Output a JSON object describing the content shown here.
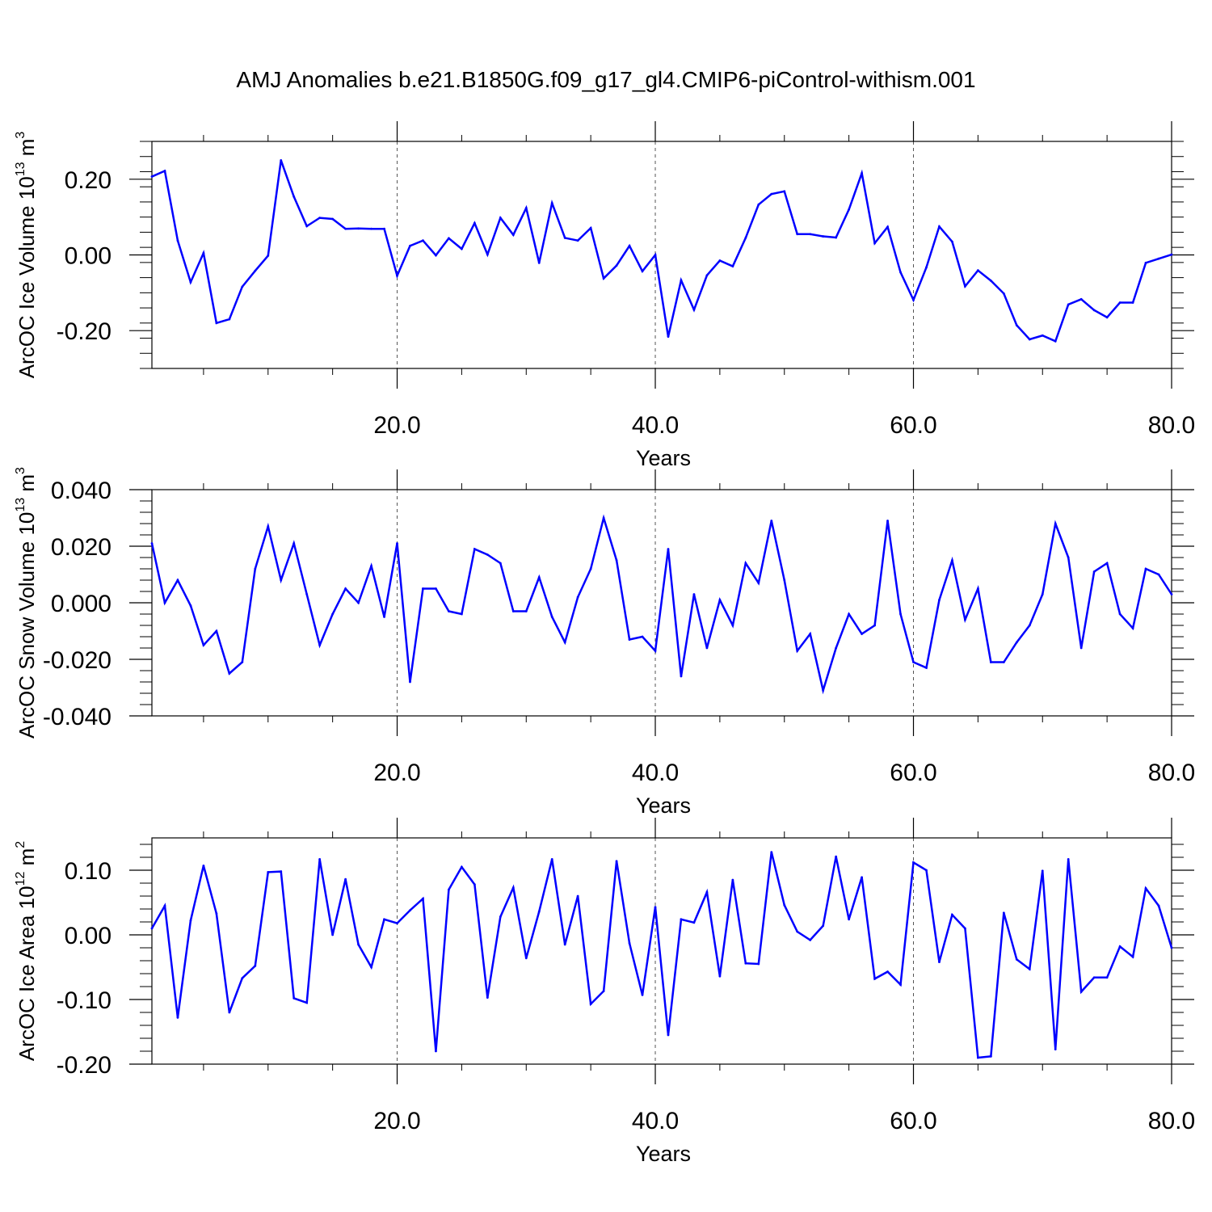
{
  "title": "AMJ Anomalies b.e21.B1850G.f09_g17_gl4.CMIP6-piControl-withism.001",
  "colors": {
    "line": "#0000ff",
    "axes": "#000000"
  },
  "chart_data": [
    {
      "type": "line",
      "ylabel_text": "ArcOC Ice Volume 10",
      "ylabel_exp": "13",
      "ylabel_unit": " m",
      "ylabel_unit_exp": "3",
      "xlabel": "Years",
      "xlim": [
        1,
        80
      ],
      "ylim": [
        -0.3,
        0.3
      ],
      "yticks": [
        -0.2,
        0.0,
        0.2
      ],
      "ytick_labels": [
        "-0.20",
        "0.00",
        "0.20"
      ],
      "xticks": [
        20,
        40,
        60,
        80
      ],
      "xtick_labels": [
        "20.0",
        "40.0",
        "60.0",
        "80.0"
      ],
      "vlines": [
        20,
        40,
        60
      ],
      "series": [
        {
          "x": [
            1,
            2,
            3,
            4,
            5,
            6,
            7,
            8,
            9,
            10,
            11,
            12,
            13,
            14,
            15,
            16,
            17,
            18,
            19,
            20,
            21,
            22,
            23,
            24,
            25,
            26,
            27,
            28,
            29,
            30,
            31,
            32,
            33,
            34,
            35,
            36,
            37,
            38,
            39,
            40,
            41,
            42,
            43,
            44,
            45,
            46,
            47,
            48,
            49,
            50,
            51,
            52,
            53,
            54,
            55,
            56,
            57,
            58,
            59,
            60,
            61,
            62,
            63,
            64,
            65,
            66,
            67,
            68,
            69,
            70,
            71,
            72,
            73,
            74,
            75,
            76,
            77,
            78,
            79,
            80
          ],
          "values": [
            0.207,
            0.222,
            0.038,
            -0.072,
            0.005,
            -0.18,
            -0.17,
            -0.084,
            -0.042,
            -0.002,
            0.25,
            0.154,
            0.076,
            0.098,
            0.095,
            0.069,
            0.07,
            0.069,
            0.069,
            -0.055,
            0.024,
            0.038,
            -0.001,
            0.044,
            0.016,
            0.084,
            0.001,
            0.098,
            0.053,
            0.124,
            -0.021,
            0.137,
            0.045,
            0.038,
            0.071,
            -0.062,
            -0.028,
            0.024,
            -0.043,
            0.0,
            -0.216,
            -0.067,
            -0.145,
            -0.054,
            -0.015,
            -0.03,
            0.045,
            0.133,
            0.161,
            0.168,
            0.055,
            0.055,
            0.049,
            0.046,
            0.12,
            0.216,
            0.031,
            0.074,
            -0.046,
            -0.119,
            -0.033,
            0.075,
            0.035,
            -0.083,
            -0.041,
            -0.068,
            -0.102,
            -0.186,
            -0.223,
            -0.213,
            -0.228,
            -0.131,
            -0.117,
            -0.146,
            -0.165,
            -0.126,
            -0.126,
            -0.021,
            -0.01,
            0.001
          ]
        }
      ]
    },
    {
      "type": "line",
      "ylabel_text": "ArcOC Snow Volume 10",
      "ylabel_exp": "13",
      "ylabel_unit": " m",
      "ylabel_unit_exp": "3",
      "xlabel": "Years",
      "xlim": [
        1,
        80
      ],
      "ylim": [
        -0.04,
        0.04
      ],
      "yticks": [
        -0.04,
        -0.02,
        0.0,
        0.02,
        0.04
      ],
      "ytick_labels": [
        "-0.040",
        "-0.020",
        "0.000",
        "0.020",
        "0.040"
      ],
      "xticks": [
        20,
        40,
        60,
        80
      ],
      "xtick_labels": [
        "20.0",
        "40.0",
        "60.0",
        "80.0"
      ],
      "vlines": [
        20,
        40,
        60
      ],
      "series": [
        {
          "x": [
            1,
            2,
            3,
            4,
            5,
            6,
            7,
            8,
            9,
            10,
            11,
            12,
            13,
            14,
            15,
            16,
            17,
            18,
            19,
            20,
            21,
            22,
            23,
            24,
            25,
            26,
            27,
            28,
            29,
            30,
            31,
            32,
            33,
            34,
            35,
            36,
            37,
            38,
            39,
            40,
            41,
            42,
            43,
            44,
            45,
            46,
            47,
            48,
            49,
            50,
            51,
            52,
            53,
            54,
            55,
            56,
            57,
            58,
            59,
            60,
            61,
            62,
            63,
            64,
            65,
            66,
            67,
            68,
            69,
            70,
            71,
            72,
            73,
            74,
            75,
            76,
            77,
            78,
            79,
            80
          ],
          "values": [
            0.021,
            0.0,
            0.008,
            -0.001,
            -0.015,
            -0.01,
            -0.025,
            -0.021,
            0.012,
            0.027,
            0.008,
            0.021,
            0.003,
            -0.015,
            -0.004,
            0.005,
            0.0,
            0.013,
            -0.005,
            0.021,
            -0.028,
            0.005,
            0.005,
            -0.003,
            -0.004,
            0.019,
            0.017,
            0.014,
            -0.003,
            -0.003,
            0.009,
            -0.005,
            -0.014,
            0.002,
            0.012,
            0.03,
            0.015,
            -0.013,
            -0.012,
            -0.017,
            0.019,
            -0.026,
            0.003,
            -0.016,
            0.001,
            -0.008,
            0.014,
            0.007,
            0.029,
            0.008,
            -0.017,
            -0.011,
            -0.031,
            -0.016,
            -0.004,
            -0.011,
            -0.008,
            0.029,
            -0.004,
            -0.021,
            -0.023,
            0.001,
            0.015,
            -0.006,
            0.005,
            -0.021,
            -0.021,
            -0.014,
            -0.008,
            0.003,
            0.028,
            0.016,
            -0.016,
            0.011,
            0.014,
            -0.004,
            -0.009,
            0.012,
            0.01,
            0.003
          ]
        }
      ]
    },
    {
      "type": "line",
      "ylabel_text": "ArcOC Ice Area 10",
      "ylabel_exp": "12",
      "ylabel_unit": " m",
      "ylabel_unit_exp": "2",
      "xlabel": "Years",
      "xlim": [
        1,
        80
      ],
      "ylim": [
        -0.2,
        0.15
      ],
      "yticks": [
        -0.2,
        -0.1,
        0.0,
        0.1
      ],
      "ytick_labels": [
        "-0.20",
        "-0.10",
        "0.00",
        "0.10"
      ],
      "xticks": [
        20,
        40,
        60,
        80
      ],
      "xtick_labels": [
        "20.0",
        "40.0",
        "60.0",
        "80.0"
      ],
      "vlines": [
        20,
        40,
        60
      ],
      "series": [
        {
          "x": [
            1,
            2,
            3,
            4,
            5,
            6,
            7,
            8,
            9,
            10,
            11,
            12,
            13,
            14,
            15,
            16,
            17,
            18,
            19,
            20,
            21,
            22,
            23,
            24,
            25,
            26,
            27,
            28,
            29,
            30,
            31,
            32,
            33,
            34,
            35,
            36,
            37,
            38,
            39,
            40,
            41,
            42,
            43,
            44,
            45,
            46,
            47,
            48,
            49,
            50,
            51,
            52,
            53,
            54,
            55,
            56,
            57,
            58,
            59,
            60,
            61,
            62,
            63,
            64,
            65,
            66,
            67,
            68,
            69,
            70,
            71,
            72,
            73,
            74,
            75,
            76,
            77,
            78,
            79,
            80
          ],
          "values": [
            0.01,
            0.045,
            -0.128,
            0.022,
            0.107,
            0.033,
            -0.12,
            -0.067,
            -0.048,
            0.097,
            0.098,
            -0.098,
            -0.105,
            0.117,
            0.0,
            0.086,
            -0.015,
            -0.05,
            0.024,
            0.018,
            0.038,
            0.056,
            -0.18,
            0.07,
            0.105,
            0.078,
            -0.097,
            0.028,
            0.073,
            -0.036,
            0.036,
            0.117,
            -0.015,
            0.06,
            -0.107,
            -0.087,
            0.114,
            -0.013,
            -0.093,
            0.043,
            -0.155,
            0.024,
            0.019,
            0.066,
            -0.064,
            0.085,
            -0.044,
            -0.045,
            0.128,
            0.046,
            0.005,
            -0.008,
            0.014,
            0.121,
            0.024,
            0.089,
            -0.068,
            -0.057,
            -0.077,
            0.112,
            0.1,
            -0.042,
            0.031,
            0.01,
            -0.19,
            -0.188,
            0.034,
            -0.038,
            -0.053,
            0.099,
            -0.177,
            0.117,
            -0.088,
            -0.066,
            -0.066,
            -0.018,
            -0.034,
            0.072,
            0.045,
            -0.02
          ]
        }
      ]
    }
  ]
}
